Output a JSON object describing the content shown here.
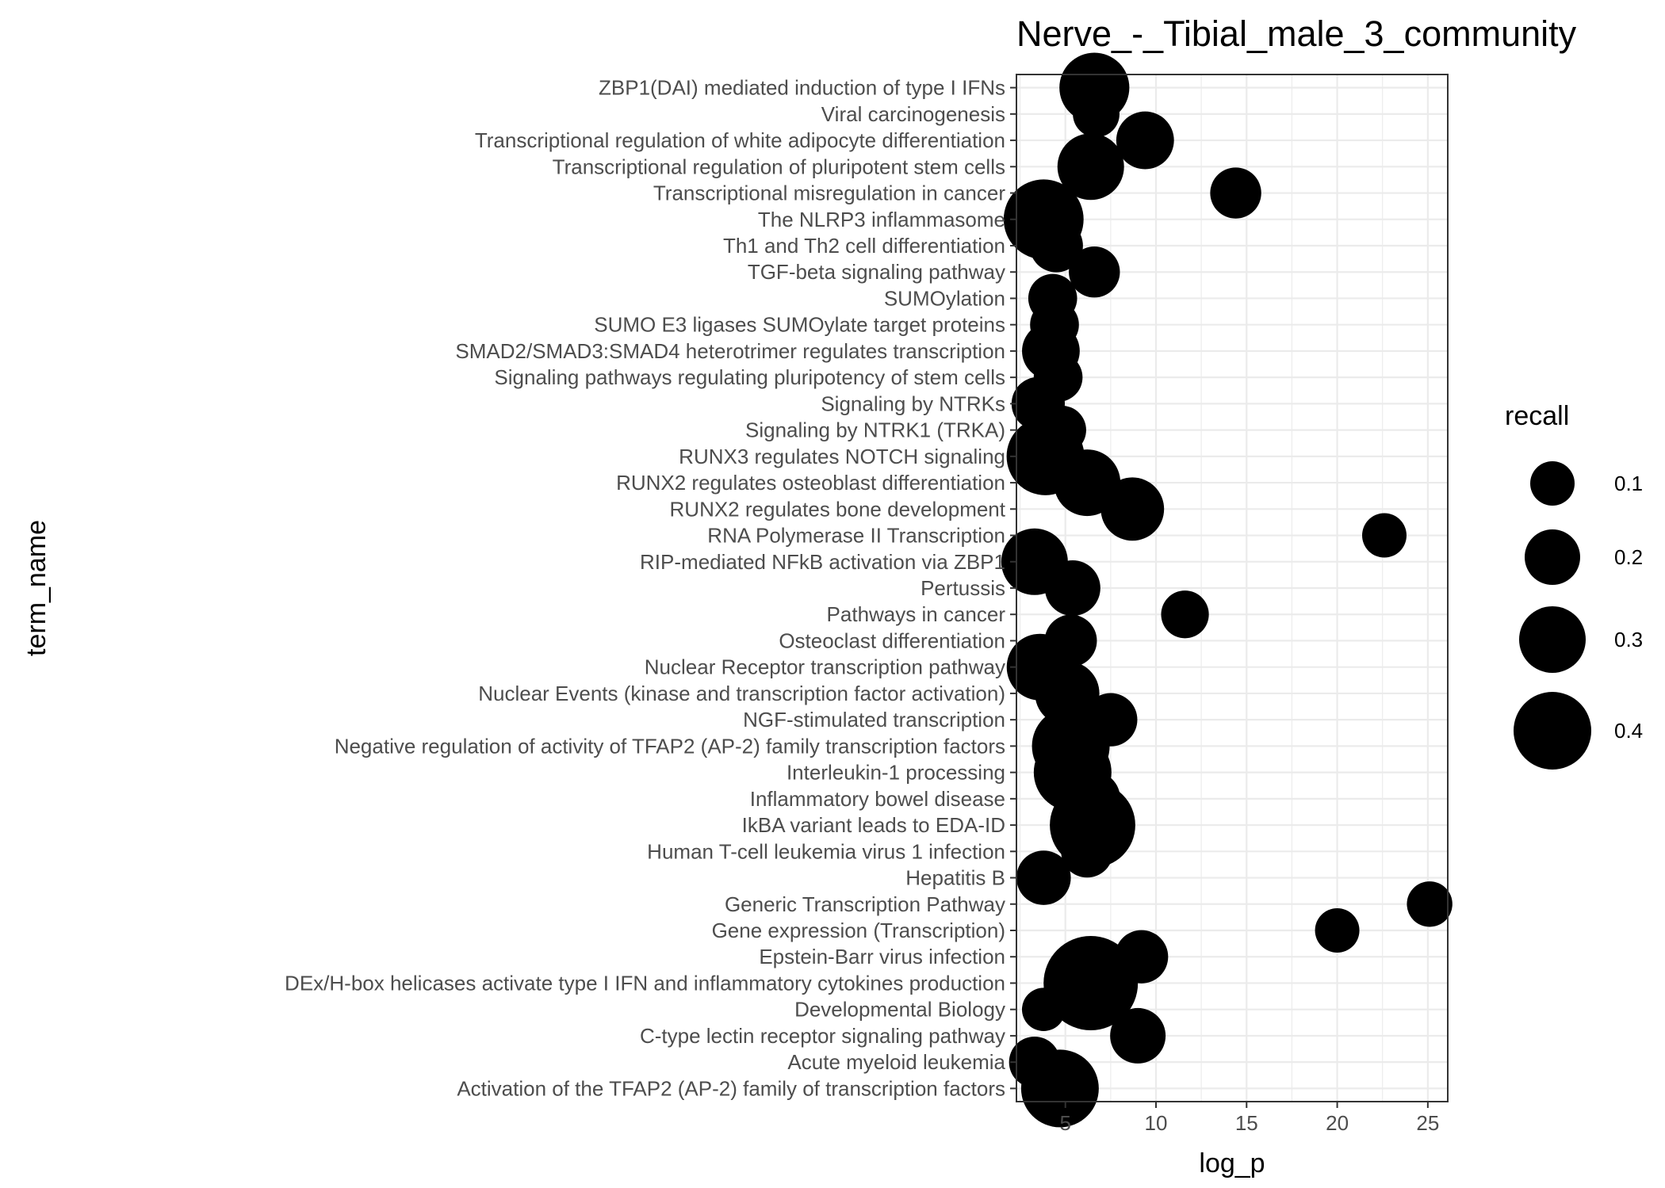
{
  "chart_data": {
    "type": "scatter",
    "title": "Nerve_-_Tibial_male_3_community",
    "xlabel": "log_p",
    "ylabel": "term_name",
    "xlim": [
      2.3,
      26.1
    ],
    "xticks": [
      5,
      10,
      15,
      20,
      25
    ],
    "grid": true,
    "legend": {
      "title": "recall",
      "position": "right",
      "values": [
        0.1,
        0.2,
        0.3,
        0.4
      ],
      "labels": [
        "0.1",
        "0.2",
        "0.3",
        "0.4"
      ]
    },
    "point_color": "#000000",
    "categories": [
      "ZBP1(DAI) mediated induction of type I IFNs",
      "Viral carcinogenesis",
      "Transcriptional regulation of white adipocyte differentiation",
      "Transcriptional regulation of pluripotent stem cells",
      "Transcriptional misregulation in cancer",
      "The NLRP3 inflammasome",
      "Th1 and Th2 cell differentiation",
      "TGF-beta signaling pathway",
      "SUMOylation",
      "SUMO E3 ligases SUMOylate target proteins",
      "SMAD2/SMAD3:SMAD4 heterotrimer regulates transcription",
      "Signaling pathways regulating pluripotency of stem cells",
      "Signaling by NTRKs",
      "Signaling by NTRK1 (TRKA)",
      "RUNX3 regulates NOTCH signaling",
      "RUNX2 regulates osteoblast differentiation",
      "RUNX2 regulates bone development",
      "RNA Polymerase II Transcription",
      "RIP-mediated NFkB activation via ZBP1",
      "Pertussis",
      "Pathways in cancer",
      "Osteoclast differentiation",
      "Nuclear Receptor transcription pathway",
      "Nuclear Events (kinase and transcription factor activation)",
      "NGF-stimulated transcription",
      "Negative regulation of activity of TFAP2 (AP-2) family transcription factors",
      "Interleukin-1 processing",
      "Inflammatory bowel disease",
      "IkBA variant leads to EDA-ID",
      "Human T-cell leukemia virus 1 infection",
      "Hepatitis B",
      "Generic Transcription Pathway",
      "Gene expression (Transcription)",
      "Epstein-Barr virus infection",
      "DEx/H-box helicases activate type I IFN and inflammatory cytokines production",
      "Developmental Biology",
      "C-type lectin receptor signaling pathway",
      "Acute myeloid leukemia",
      "Activation of the TFAP2 (AP-2) family of transcription factors"
    ],
    "points": [
      {
        "term": "ZBP1(DAI) mediated induction of type I IFNs",
        "log_p": 6.6,
        "recall": 0.33
      },
      {
        "term": "Viral carcinogenesis",
        "log_p": 6.7,
        "recall": 0.12
      },
      {
        "term": "Transcriptional regulation of white adipocyte differentiation",
        "log_p": 9.4,
        "recall": 0.22
      },
      {
        "term": "Transcriptional regulation of pluripotent stem cells",
        "log_p": 6.4,
        "recall": 0.3
      },
      {
        "term": "Transcriptional misregulation in cancer",
        "log_p": 14.4,
        "recall": 0.16
      },
      {
        "term": "The NLRP3 inflammasome",
        "log_p": 3.8,
        "recall": 0.42
      },
      {
        "term": "Th1 and Th2 cell differentiation",
        "log_p": 4.5,
        "recall": 0.18
      },
      {
        "term": "TGF-beta signaling pathway",
        "log_p": 6.6,
        "recall": 0.16
      },
      {
        "term": "SUMOylation",
        "log_p": 4.3,
        "recall": 0.14
      },
      {
        "term": "SUMO E3 ligases SUMOylate target proteins",
        "log_p": 4.4,
        "recall": 0.14
      },
      {
        "term": "SMAD2/SMAD3:SMAD4 heterotrimer regulates transcription",
        "log_p": 4.2,
        "recall": 0.22
      },
      {
        "term": "Signaling pathways regulating pluripotency of stem cells",
        "log_p": 4.6,
        "recall": 0.14
      },
      {
        "term": "Signaling by NTRKs",
        "log_p": 3.5,
        "recall": 0.18
      },
      {
        "term": "Signaling by NTRK1 (TRKA)",
        "log_p": 4.8,
        "recall": 0.14
      },
      {
        "term": "RUNX3 regulates NOTCH signaling",
        "log_p": 3.9,
        "recall": 0.4
      },
      {
        "term": "RUNX2 regulates osteoblast differentiation",
        "log_p": 6.2,
        "recall": 0.3
      },
      {
        "term": "RUNX2 regulates bone development",
        "log_p": 8.7,
        "recall": 0.27
      },
      {
        "term": "RNA Polymerase II Transcription",
        "log_p": 22.6,
        "recall": 0.1
      },
      {
        "term": "RIP-mediated NFkB activation via ZBP1",
        "log_p": 3.3,
        "recall": 0.3
      },
      {
        "term": "Pertussis",
        "log_p": 5.4,
        "recall": 0.2
      },
      {
        "term": "Pathways in cancer",
        "log_p": 11.6,
        "recall": 0.13
      },
      {
        "term": "Osteoclast differentiation",
        "log_p": 5.3,
        "recall": 0.17
      },
      {
        "term": "Nuclear Receptor transcription pathway",
        "log_p": 3.6,
        "recall": 0.3
      },
      {
        "term": "Nuclear Events (kinase and transcription factor activation)",
        "log_p": 5.1,
        "recall": 0.28
      },
      {
        "term": "NGF-stimulated transcription",
        "log_p": 7.5,
        "recall": 0.18
      },
      {
        "term": "Negative regulation of activity of TFAP2 (AP-2) family transcription factors",
        "log_p": 5.3,
        "recall": 0.4
      },
      {
        "term": "Interleukin-1 processing",
        "log_p": 5.4,
        "recall": 0.4
      },
      {
        "term": "Inflammatory bowel disease",
        "log_p": 6.5,
        "recall": 0.2
      },
      {
        "term": "IkBA variant leads to EDA-ID",
        "log_p": 6.5,
        "recall": 0.47
      },
      {
        "term": "Human T-cell leukemia virus 1 infection",
        "log_p": 6.2,
        "recall": 0.17
      },
      {
        "term": "Hepatitis B",
        "log_p": 3.8,
        "recall": 0.19
      },
      {
        "term": "Generic Transcription Pathway",
        "log_p": 25.1,
        "recall": 0.11
      },
      {
        "term": "Gene expression (Transcription)",
        "log_p": 20.0,
        "recall": 0.1
      },
      {
        "term": "Epstein-Barr virus infection",
        "log_p": 9.2,
        "recall": 0.18
      },
      {
        "term": "DEx/H-box helicases activate type I IFN and inflammatory cytokines production",
        "log_p": 6.4,
        "recall": 0.55
      },
      {
        "term": "Developmental Biology",
        "log_p": 3.8,
        "recall": 0.09
      },
      {
        "term": "C-type lectin receptor signaling pathway",
        "log_p": 9.0,
        "recall": 0.2
      },
      {
        "term": "Acute myeloid leukemia",
        "log_p": 3.3,
        "recall": 0.16
      },
      {
        "term": "Activation of the TFAP2 (AP-2) family of transcription factors",
        "log_p": 4.7,
        "recall": 0.4
      }
    ]
  }
}
